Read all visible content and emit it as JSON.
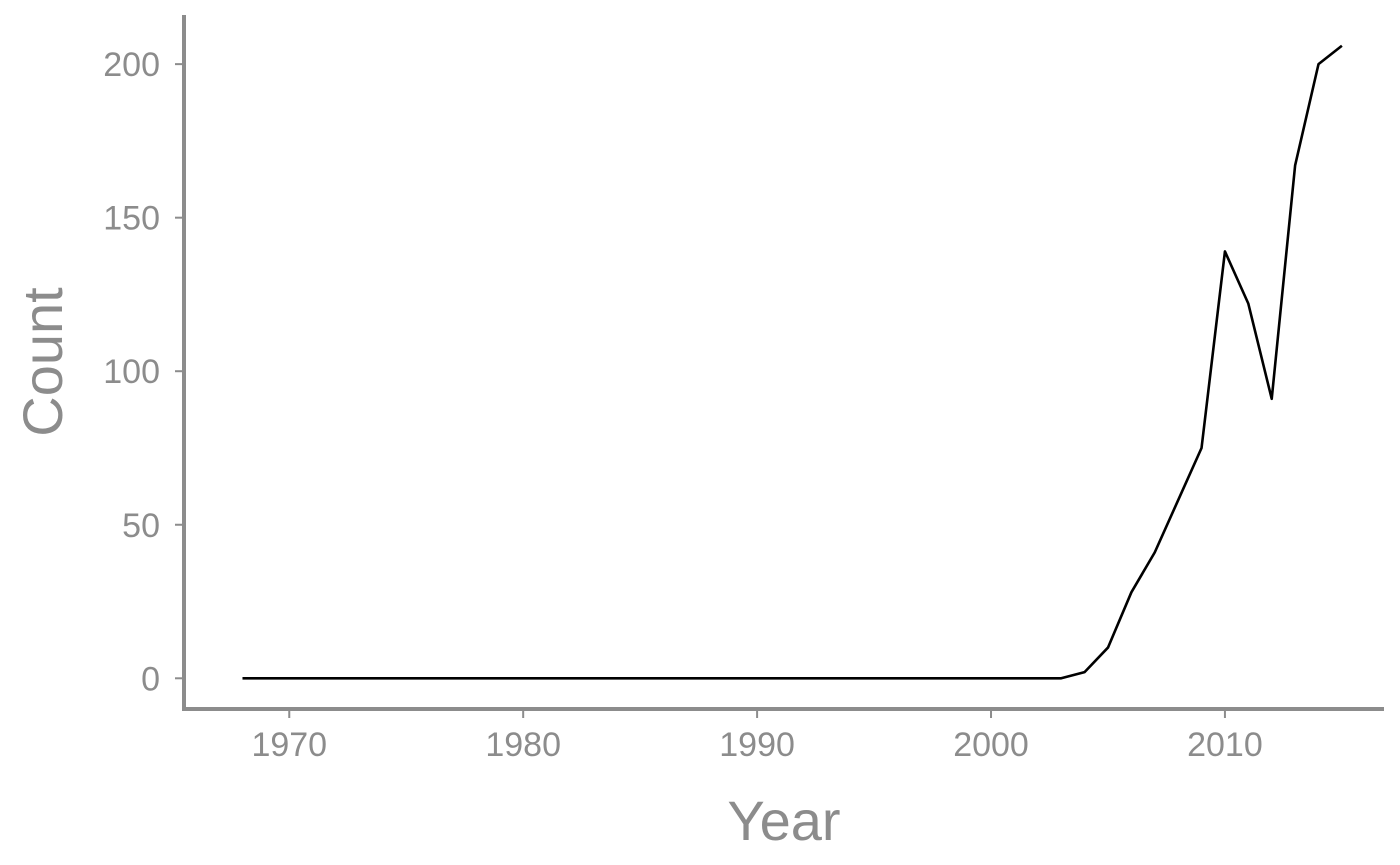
{
  "chart_data": {
    "type": "line",
    "title": "",
    "xlabel": "Year",
    "ylabel": "Count",
    "xlim": [
      1965.5,
      2016.8
    ],
    "ylim": [
      -10,
      216
    ],
    "x_ticks": [
      1970,
      1980,
      1990,
      2000,
      2010
    ],
    "x_tick_labels": [
      "1970",
      "1980",
      "1990",
      "2000",
      "2010"
    ],
    "y_ticks": [
      0,
      50,
      100,
      150,
      200
    ],
    "y_tick_labels": [
      "0",
      "50",
      "100",
      "150",
      "200"
    ],
    "grid": false,
    "legend": "none",
    "colors": {
      "line": "#000000",
      "axis": "#8c8c8c",
      "text": "#8c8c8c"
    },
    "series": [
      {
        "x": [
          1968,
          1969,
          1970,
          1971,
          1972,
          1973,
          1974,
          1975,
          1976,
          1977,
          1978,
          1979,
          1980,
          1981,
          1982,
          1983,
          1984,
          1985,
          1986,
          1987,
          1988,
          1989,
          1990,
          1991,
          1992,
          1993,
          1994,
          1995,
          1996,
          1997,
          1998,
          1999,
          2000,
          2001,
          2002,
          2003,
          2004,
          2005,
          2006,
          2007,
          2008,
          2009,
          2010,
          2011,
          2012,
          2013,
          2014,
          2015
        ],
        "values": [
          0,
          0,
          0,
          0,
          0,
          0,
          0,
          0,
          0,
          0,
          0,
          0,
          0,
          0,
          0,
          0,
          0,
          0,
          0,
          0,
          0,
          0,
          0,
          0,
          0,
          0,
          0,
          0,
          0,
          0,
          0,
          0,
          0,
          0,
          0,
          0,
          2,
          10,
          28,
          41,
          58,
          75,
          139,
          122,
          91,
          167,
          200,
          206
        ]
      }
    ]
  }
}
